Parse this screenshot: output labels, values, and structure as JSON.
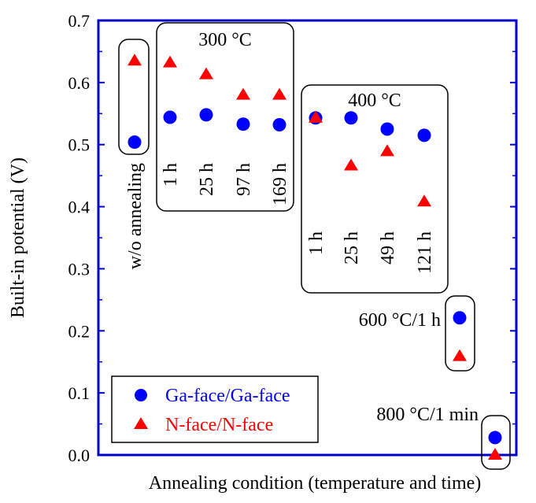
{
  "chart_data": {
    "type": "scatter",
    "xlabel": "Annealing condition (temperature and time)",
    "ylabel": "Built-in potential (V)",
    "ylim": [
      0,
      0.7
    ],
    "yticks": [
      "0.0",
      "0.1",
      "0.2",
      "0.3",
      "0.4",
      "0.5",
      "0.6",
      "0.7"
    ],
    "grid": false,
    "legend_position": "bottom-left",
    "colors": {
      "ga": "#0000ff",
      "n": "#ff0000",
      "axis": "#0000cc"
    },
    "groups": [
      {
        "title": "",
        "labels": [
          "w/o annealing"
        ]
      },
      {
        "title": "300 °C",
        "labels": [
          "1 h",
          "25 h",
          "97 h",
          "169 h"
        ]
      },
      {
        "title": "400 °C",
        "labels": [
          "1 h",
          "25 h",
          "49 h",
          "121 h"
        ]
      },
      {
        "title": "600 °C/1 h",
        "labels": []
      },
      {
        "title": "800 °C/1 min",
        "labels": []
      }
    ],
    "series": [
      {
        "name": "Ga-face/Ga-face",
        "marker": "circle",
        "values": [
          0.504,
          0.544,
          0.548,
          0.533,
          0.532,
          0.543,
          0.543,
          0.525,
          0.515,
          0.221,
          0.028
        ]
      },
      {
        "name": "N-face/N-face",
        "marker": "triangle",
        "values": [
          0.635,
          0.632,
          0.613,
          0.58,
          0.58,
          0.543,
          0.466,
          0.489,
          0.408,
          0.159,
          0.0
        ]
      }
    ]
  }
}
